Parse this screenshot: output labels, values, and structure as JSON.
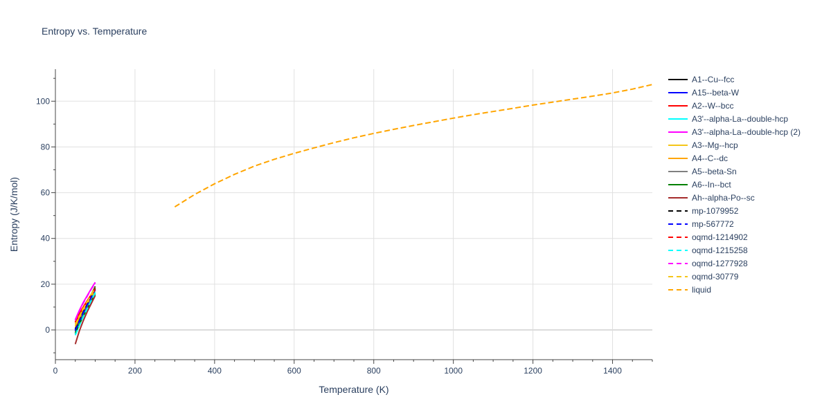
{
  "chart_data": {
    "type": "line",
    "title": "Entropy vs. Temperature",
    "xlabel": "Temperature (K)",
    "ylabel": "Entropy (J/K/mol)",
    "xlim": [
      0,
      1500
    ],
    "ylim": [
      -13,
      114
    ],
    "x_ticks": [
      0,
      200,
      400,
      600,
      800,
      1000,
      1200,
      1400
    ],
    "y_ticks": [
      0,
      20,
      40,
      60,
      80,
      100
    ],
    "grid": true,
    "legend_position": "right",
    "series": [
      {
        "name": "A1--Cu--fcc",
        "color": "#000000",
        "dash": "solid",
        "x": [
          50,
          60,
          70,
          80,
          90,
          100
        ],
        "y": [
          0.5,
          4.5,
          8.2,
          11.8,
          15.4,
          19.0
        ]
      },
      {
        "name": "A15--beta-W",
        "color": "#0000ff",
        "dash": "solid",
        "x": [
          50,
          60,
          70,
          80,
          90,
          100
        ],
        "y": [
          -0.5,
          3.5,
          7.2,
          10.8,
          14.0,
          17.5
        ]
      },
      {
        "name": "A2--W--bcc",
        "color": "#ff0000",
        "dash": "solid",
        "x": [
          50,
          60,
          70,
          80,
          90,
          100
        ],
        "y": [
          3.5,
          7.0,
          10.0,
          12.8,
          15.5,
          18.0
        ]
      },
      {
        "name": "A3'--alpha-La--double-hcp",
        "color": "#00ffff",
        "dash": "solid",
        "x": [
          50,
          60,
          70,
          80,
          90,
          100
        ],
        "y": [
          -2.0,
          2.0,
          6.0,
          9.5,
          13.0,
          16.5
        ]
      },
      {
        "name": "A3'--alpha-La--double-hcp (2)",
        "color": "#ff00ff",
        "dash": "solid",
        "x": [
          50,
          60,
          70,
          80,
          90,
          100
        ],
        "y": [
          4.5,
          8.5,
          12.0,
          15.0,
          18.0,
          20.8
        ]
      },
      {
        "name": "A3--Mg--hcp",
        "color": "#f5c518",
        "dash": "solid",
        "x": [
          50,
          60,
          70,
          80,
          90,
          100
        ],
        "y": [
          2.5,
          6.0,
          9.5,
          12.5,
          15.5,
          18.5
        ]
      },
      {
        "name": "A4--C--dc",
        "color": "#ffa500",
        "dash": "solid",
        "x": [
          50,
          60,
          70,
          80,
          90,
          100
        ],
        "y": [
          1.5,
          5.0,
          8.5,
          11.5,
          14.5,
          17.2
        ]
      },
      {
        "name": "A5--beta-Sn",
        "color": "#808080",
        "dash": "solid",
        "x": [
          50,
          60,
          70,
          80,
          90,
          100
        ],
        "y": [
          -1.0,
          3.0,
          6.5,
          9.8,
          13.0,
          16.0
        ]
      },
      {
        "name": "A6--In--bct",
        "color": "#008000",
        "dash": "solid",
        "x": [
          50,
          60,
          70,
          80,
          90,
          100
        ],
        "y": [
          -1.5,
          2.5,
          6.0,
          9.2,
          12.5,
          15.5
        ]
      },
      {
        "name": "Ah--alpha-Po--sc",
        "color": "#a52a2a",
        "dash": "solid",
        "x": [
          50,
          60,
          70,
          80,
          90,
          100
        ],
        "y": [
          -6.2,
          -0.5,
          4.0,
          8.0,
          11.5,
          15.0
        ]
      },
      {
        "name": "mp-1079952",
        "color": "#000000",
        "dash": "dash",
        "x": [
          50,
          60,
          70,
          80,
          90,
          100
        ],
        "y": [
          0.0,
          4.0,
          7.8,
          11.2,
          14.8,
          18.2
        ]
      },
      {
        "name": "mp-567772",
        "color": "#0000ff",
        "dash": "dash",
        "x": [
          50,
          60,
          70,
          80,
          90,
          100
        ],
        "y": [
          -0.2,
          3.8,
          7.5,
          11.0,
          14.3,
          17.6
        ]
      },
      {
        "name": "oqmd-1214902",
        "color": "#ff0000",
        "dash": "dash",
        "x": [
          50,
          60,
          70,
          80,
          90,
          100
        ],
        "y": [
          3.2,
          6.8,
          9.8,
          12.6,
          15.3,
          17.8
        ]
      },
      {
        "name": "oqmd-1215258",
        "color": "#00ffff",
        "dash": "dash",
        "x": [
          50,
          60,
          70,
          80,
          90,
          100
        ],
        "y": [
          -2.3,
          1.8,
          5.7,
          9.3,
          12.8,
          16.2
        ]
      },
      {
        "name": "oqmd-1277928",
        "color": "#ff00ff",
        "dash": "dash",
        "x": [
          50,
          60,
          70,
          80,
          90,
          100
        ],
        "y": [
          4.2,
          8.2,
          11.7,
          14.8,
          17.8,
          20.5
        ]
      },
      {
        "name": "oqmd-30779",
        "color": "#f5c518",
        "dash": "dash",
        "x": [
          50,
          60,
          70,
          80,
          90,
          100
        ],
        "y": [
          2.3,
          5.8,
          9.3,
          12.3,
          15.3,
          18.3
        ]
      },
      {
        "name": "liquid",
        "color": "#ffa500",
        "dash": "dash",
        "x": [
          300,
          350,
          400,
          450,
          500,
          550,
          600,
          650,
          700,
          750,
          800,
          850,
          900,
          950,
          1000,
          1050,
          1100,
          1150,
          1200,
          1250,
          1300,
          1350,
          1400,
          1450,
          1500
        ],
        "y": [
          53.8,
          59.2,
          63.9,
          68.0,
          71.6,
          74.6,
          77.2,
          79.6,
          81.9,
          84.0,
          85.9,
          87.7,
          89.4,
          91.0,
          92.6,
          94.1,
          95.5,
          96.9,
          98.3,
          99.6,
          100.9,
          102.2,
          103.6,
          105.3,
          107.3
        ]
      }
    ]
  }
}
